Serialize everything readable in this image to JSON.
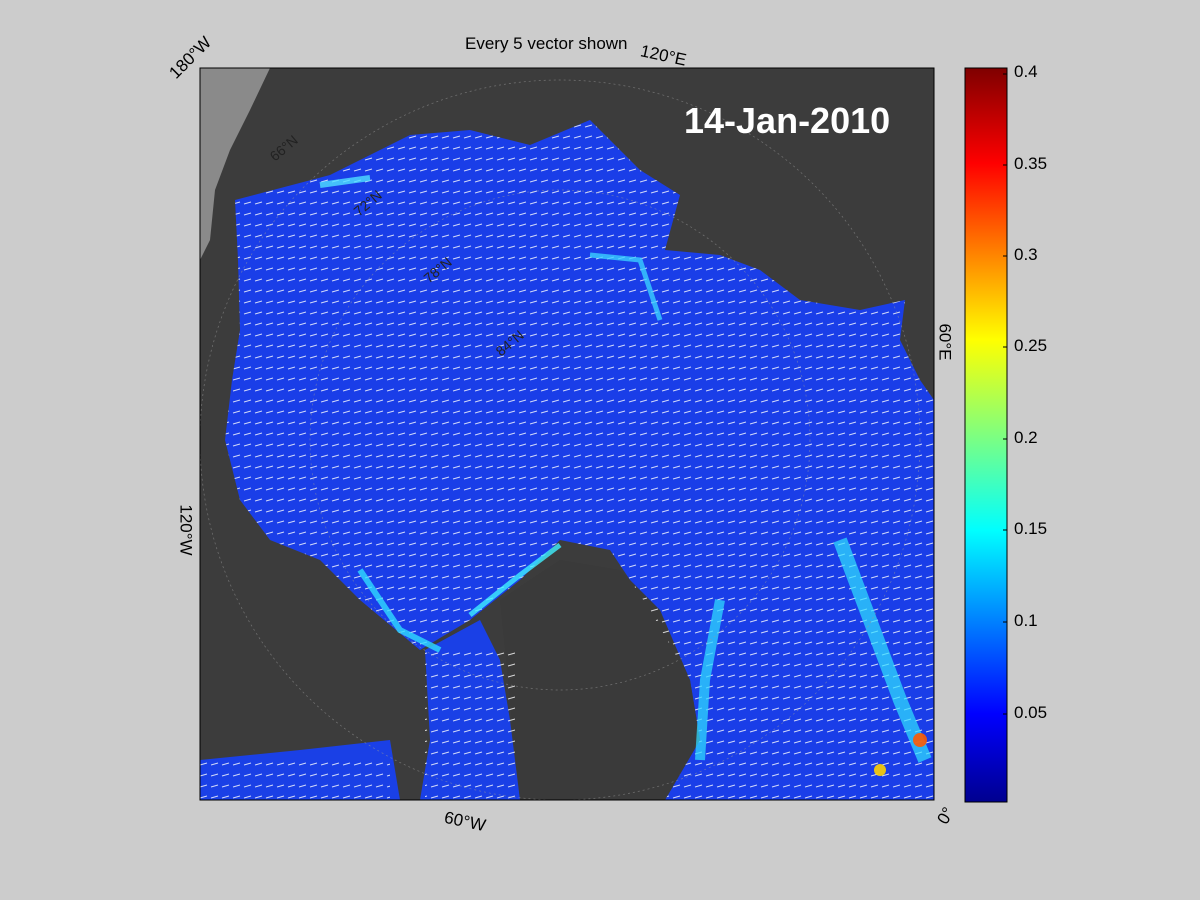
{
  "title": "Every 5 vector shown",
  "date": "14-Jan-2010",
  "colorbar": {
    "colormap": "jet",
    "ticks": [
      "0.4",
      "0.35",
      "0.3",
      "0.25",
      "0.2",
      "0.15",
      "0.1",
      "0.05"
    ],
    "range": [
      0,
      0.4
    ]
  },
  "map": {
    "projection": "polar-stereographic",
    "longitude_labels": [
      "180°W",
      "120°E",
      "60°E",
      "0°",
      "60°W",
      "120°W"
    ],
    "latitude_labels": [
      "66°N",
      "72°N",
      "78°N",
      "84°N"
    ],
    "colors": {
      "land": "#3c3c3c",
      "outer_land": "#8a8a8a",
      "ice": "#1a3ee8",
      "vectors": "#ffffff",
      "background": "#cccccc"
    }
  }
}
